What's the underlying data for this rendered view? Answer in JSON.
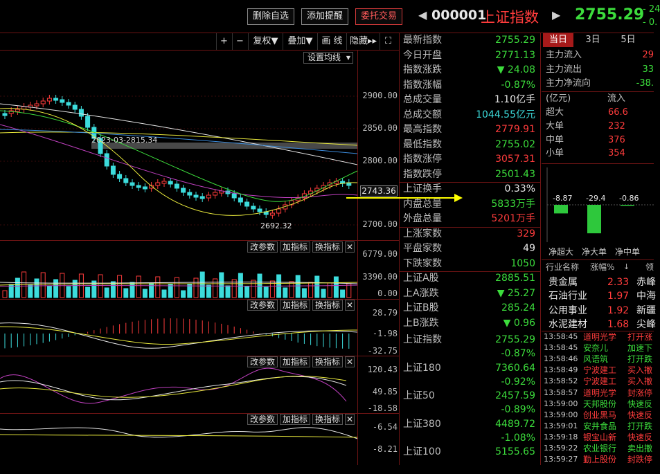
{
  "header": {
    "delete_fav": "删除自选",
    "add_alert": "添加提醒",
    "trade": "委托交易",
    "code": "000001",
    "name": "上证指数",
    "price": "2755.29",
    "change_top": "- 24",
    "change_bottom": "- 0."
  },
  "toolbar": {
    "plus": "+",
    "minus": "−",
    "fuquan": "复权",
    "diejia": "叠加",
    "huaxian": "画 线",
    "yincang": "隐藏",
    "set_ma": "设置均线"
  },
  "chart": {
    "price_axis": [
      "2900.00",
      "2850.00",
      "2800.00",
      "2700.00"
    ],
    "current_tag": "2743.36",
    "high_label": "2023-03-2815.34",
    "low_label": "2692.32",
    "volume_axis": [
      "6779.00",
      "3390.00",
      "0.00"
    ],
    "macd_axis": [
      "28.79",
      "-1.98",
      "-32.75"
    ],
    "kdj_axis": [
      "120.43",
      "49.85",
      "-18.58"
    ],
    "wr_axis": [
      "-6.54",
      "-8.21"
    ],
    "indicator_buttons": [
      "改参数",
      "加指标",
      "换指标"
    ]
  },
  "quote": [
    {
      "label": "最新指数",
      "value": "2755.29",
      "color": "#3cdc3c"
    },
    {
      "label": "今日开盘",
      "value": "2771.13",
      "color": "#3cdc3c"
    },
    {
      "label": "指数涨跌",
      "value": "▼ 24.08",
      "color": "#3cdc3c"
    },
    {
      "label": "指数涨幅",
      "value": "-0.87%",
      "color": "#3cdc3c"
    },
    {
      "label": "总成交量",
      "value": "1.10亿手",
      "color": "#e8e8e8"
    },
    {
      "label": "总成交额",
      "value": "1044.55亿元",
      "color": "#3cdcdc"
    },
    {
      "label": "最高指数",
      "value": "2779.91",
      "color": "#ff3c3c"
    },
    {
      "label": "最低指数",
      "value": "2755.02",
      "color": "#3cdc3c"
    },
    {
      "label": "指数涨停",
      "value": "3057.31",
      "color": "#ff3c3c"
    },
    {
      "label": "指数跌停",
      "value": "2501.43",
      "color": "#3cdc3c"
    },
    {
      "label": "上证换手",
      "value": "0.33%",
      "color": "#e8e8e8"
    },
    {
      "label": "内盘总量",
      "value": "5833万手",
      "color": "#3cdc3c"
    },
    {
      "label": "外盘总量",
      "value": "5201万手",
      "color": "#ff3c3c"
    },
    {
      "label": "上涨家数",
      "value": "329",
      "color": "#ff3c3c"
    },
    {
      "label": "平盘家数",
      "value": "49",
      "color": "#e8e8e8"
    },
    {
      "label": "下跌家数",
      "value": "1050",
      "color": "#3cdc3c"
    },
    {
      "label": "上证A股",
      "value": "2885.51",
      "color": "#3cdc3c"
    },
    {
      "label": "上A涨跌",
      "value": "▼ 25.27",
      "color": "#3cdc3c"
    },
    {
      "label": "上证B股",
      "value": "285.24",
      "color": "#3cdc3c"
    },
    {
      "label": "上B涨跌",
      "value": "▼ 0.96",
      "color": "#3cdc3c"
    }
  ],
  "indices": [
    {
      "label": "上证指数",
      "value": "2755.29",
      "pct": "-0.87%"
    },
    {
      "label": "上证180",
      "value": "7360.64",
      "pct": "-0.92%"
    },
    {
      "label": "上证50",
      "value": "2457.59",
      "pct": "-0.89%"
    },
    {
      "label": "上证380",
      "value": "4489.72",
      "pct": "-1.08%"
    },
    {
      "label": "上证100",
      "value": "5155.65",
      "pct": ""
    }
  ],
  "fund_tabs": [
    "当日",
    "3日",
    "5日"
  ],
  "fund_flow": [
    {
      "label": "主力流入",
      "value": "29"
    },
    {
      "label": "主力流出",
      "value": "33"
    },
    {
      "label": "主力净流向",
      "value": "-38."
    }
  ],
  "fund_table_head": [
    "(亿元)",
    "流入"
  ],
  "fund_table": [
    {
      "label": "超大",
      "value": "66.6"
    },
    {
      "label": "大单",
      "value": "232"
    },
    {
      "label": "中单",
      "value": "376"
    },
    {
      "label": "小单",
      "value": "354"
    }
  ],
  "net_bars": {
    "values": [
      -8.87,
      -29.4,
      -0.86
    ],
    "labels": [
      "-8.87",
      "-29.4",
      "-0.86"
    ],
    "captions": [
      "净超大",
      "净大单",
      "净中单"
    ]
  },
  "sector_head": [
    "行业名称",
    "涨幅%",
    "领"
  ],
  "sectors": [
    {
      "name": "贵金属",
      "pct": "2.33",
      "lead": "赤峰"
    },
    {
      "name": "石油行业",
      "pct": "1.97",
      "lead": "中海"
    },
    {
      "name": "公用事业",
      "pct": "1.92",
      "lead": "新疆"
    },
    {
      "name": "水泥建材",
      "pct": "1.68",
      "lead": "尖峰"
    }
  ],
  "ticks": [
    {
      "time": "13:58:45",
      "name": "道明光学",
      "act": "打开涨"
    },
    {
      "time": "13:58:45",
      "name": "安奈儿",
      "act": "加速下"
    },
    {
      "time": "13:58:46",
      "name": "风语筑",
      "act": "打开跌"
    },
    {
      "time": "13:58:49",
      "name": "宁波建工",
      "act": "买入撤"
    },
    {
      "time": "13:58:52",
      "name": "宁波建工",
      "act": "买入撤"
    },
    {
      "time": "13:58:57",
      "name": "道明光学",
      "act": "封涨停"
    },
    {
      "time": "13:59:00",
      "name": "天邦股份",
      "act": "快速反"
    },
    {
      "time": "13:59:00",
      "name": "创业黑马",
      "act": "快速反"
    },
    {
      "time": "13:59:01",
      "name": "安井食品",
      "act": "打开跌"
    },
    {
      "time": "13:59:18",
      "name": "银宝山新",
      "act": "快速反"
    },
    {
      "time": "13:59:22",
      "name": "农业银行",
      "act": "卖出撤"
    },
    {
      "time": "13:59:27",
      "name": "勤上股份",
      "act": "封跌停"
    }
  ]
}
